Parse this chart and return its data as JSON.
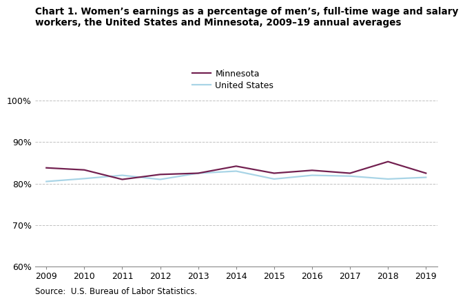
{
  "title_line1": "Chart 1. Women’s earnings as a percentage of men’s, full-time wage and salary",
  "title_line2": "workers, the United States and Minnesota, 2009–19 annual averages",
  "years": [
    2009,
    2010,
    2011,
    2012,
    2013,
    2014,
    2015,
    2016,
    2017,
    2018,
    2019
  ],
  "minnesota": [
    83.8,
    83.3,
    81.0,
    82.2,
    82.5,
    84.2,
    82.5,
    83.2,
    82.5,
    85.3,
    82.5
  ],
  "united_states": [
    80.5,
    81.2,
    82.0,
    81.0,
    82.5,
    83.0,
    81.1,
    82.0,
    81.8,
    81.1,
    81.5
  ],
  "minnesota_color": "#722050",
  "us_color": "#a8d4e6",
  "ylim": [
    60,
    100
  ],
  "yticks": [
    60,
    70,
    80,
    90,
    100
  ],
  "xlim": [
    2009,
    2019
  ],
  "legend_labels": [
    "Minnesota",
    "United States"
  ],
  "source_text": "Source:  U.S. Bureau of Labor Statistics.",
  "line_width": 1.6,
  "background_color": "#ffffff",
  "grid_color": "#c0c0c0"
}
